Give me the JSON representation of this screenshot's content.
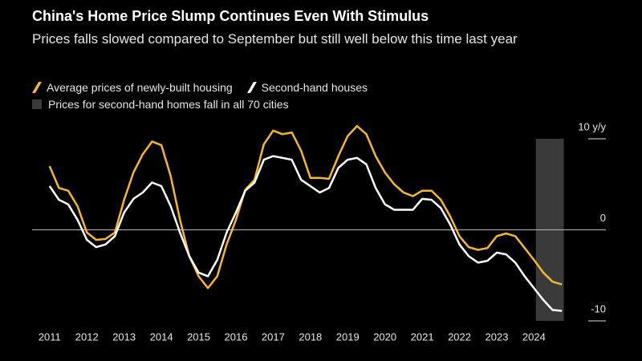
{
  "chart_data": {
    "type": "line",
    "title": "China's Home Price Slump Continues Even With Stimulus",
    "subtitle": "Prices falls slowed compared to September but still well below this time last year",
    "x": [
      2011.0,
      2011.25,
      2011.5,
      2011.75,
      2012.0,
      2012.25,
      2012.5,
      2012.75,
      2013.0,
      2013.25,
      2013.5,
      2013.75,
      2014.0,
      2014.25,
      2014.5,
      2014.75,
      2015.0,
      2015.25,
      2015.5,
      2015.75,
      2016.0,
      2016.25,
      2016.5,
      2016.75,
      2017.0,
      2017.25,
      2017.5,
      2017.75,
      2018.0,
      2018.25,
      2018.5,
      2018.75,
      2019.0,
      2019.25,
      2019.5,
      2019.75,
      2020.0,
      2020.25,
      2020.5,
      2020.75,
      2021.0,
      2021.25,
      2021.5,
      2021.75,
      2022.0,
      2022.25,
      2022.5,
      2022.75,
      2023.0,
      2023.25,
      2023.5,
      2023.75,
      2024.0,
      2024.25,
      2024.5,
      2024.75
    ],
    "series": [
      {
        "name": "Average prices of newly-built housing",
        "color": "#f5b731",
        "values": [
          7.0,
          4.6,
          4.3,
          2.6,
          -0.3,
          -1.1,
          -1.0,
          -0.3,
          3.3,
          6.3,
          8.3,
          9.7,
          9.3,
          5.9,
          1.1,
          -2.9,
          -5.1,
          -6.4,
          -5.1,
          -1.6,
          1.1,
          4.4,
          5.5,
          9.4,
          10.9,
          10.5,
          10.7,
          8.7,
          5.7,
          5.7,
          5.6,
          8.1,
          10.3,
          11.4,
          10.5,
          8.1,
          6.3,
          5.0,
          4.1,
          3.7,
          4.3,
          4.3,
          3.3,
          1.5,
          -0.7,
          -1.9,
          -2.2,
          -2.0,
          -0.7,
          -0.4,
          -0.7,
          -2.0,
          -3.3,
          -4.7,
          -5.7,
          -6.0
        ]
      },
      {
        "name": "Second-hand houses",
        "color": "#ffffff",
        "values": [
          4.8,
          3.3,
          2.8,
          1.1,
          -1.1,
          -1.9,
          -1.6,
          -0.7,
          1.9,
          3.4,
          4.1,
          5.2,
          4.8,
          2.6,
          -0.3,
          -2.9,
          -4.7,
          -5.1,
          -3.3,
          -0.3,
          1.9,
          4.3,
          5.2,
          7.7,
          8.1,
          7.9,
          7.7,
          5.5,
          4.8,
          4.1,
          4.6,
          6.8,
          7.7,
          7.9,
          7.2,
          4.6,
          2.8,
          2.2,
          2.2,
          2.2,
          3.4,
          3.3,
          2.4,
          0.6,
          -1.6,
          -2.9,
          -3.6,
          -3.4,
          -2.5,
          -2.7,
          -3.6,
          -5.1,
          -6.4,
          -7.7,
          -8.8,
          -8.9
        ]
      }
    ],
    "shade": {
      "label": "Prices for second-hand homes fall in all 70 cities",
      "color": "#3a3a3a",
      "x": [
        2024.05,
        2024.8
      ]
    },
    "xlim": [
      2010.53,
      2025.93
    ],
    "xticks": [
      2011,
      2012,
      2013,
      2014,
      2015,
      2016,
      2017,
      2018,
      2019,
      2020,
      2021,
      2022,
      2023,
      2024
    ],
    "ylim": [
      -10,
      10
    ],
    "yticks": [
      {
        "value": 10,
        "label": "10 y/y"
      },
      0,
      -10
    ]
  }
}
